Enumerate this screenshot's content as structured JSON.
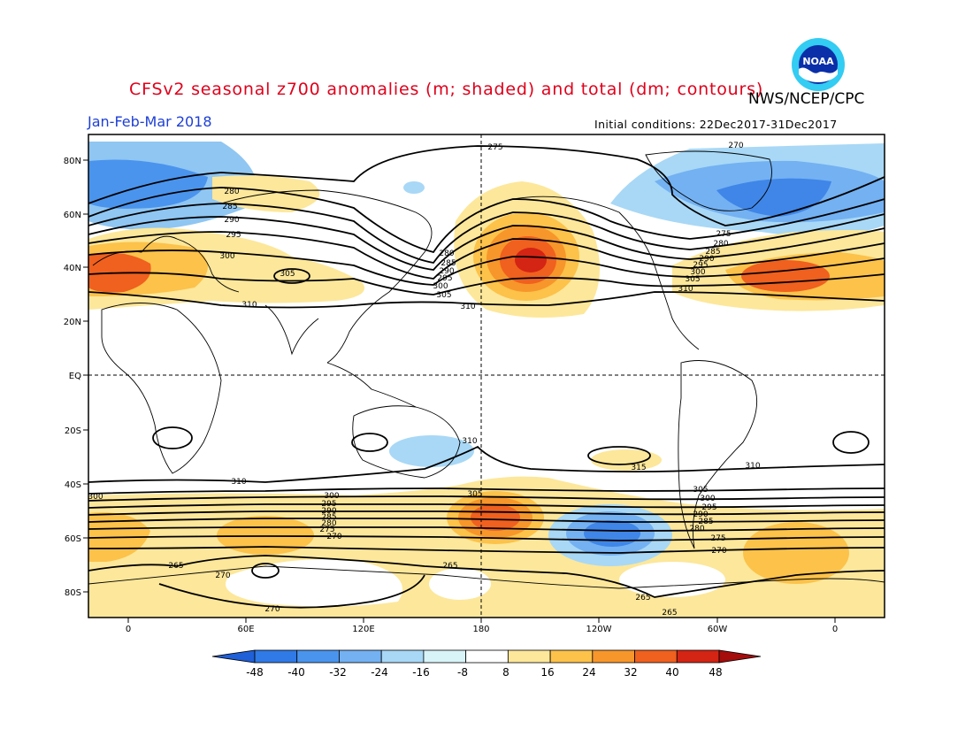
{
  "title": "CFSv2 seasonal z700 anomalies (m; shaded) and total (dm; contours)",
  "organization": "NWS/NCEP/CPC",
  "logo_text": "NOAA",
  "logo_icon": "noaa-logo-icon",
  "period": "Jan-Feb-Mar 2018",
  "initial_conditions": {
    "label": "Initial conditions:",
    "value": "22Dec2017-31Dec2017"
  },
  "lat_labels": [
    "80N",
    "60N",
    "40N",
    "20N",
    "EQ",
    "20S",
    "40S",
    "60S",
    "80S"
  ],
  "lon_labels": [
    "0",
    "60E",
    "120E",
    "180",
    "120W",
    "60W",
    "0"
  ],
  "contour_labels": [
    "275",
    "270",
    "280",
    "285",
    "290",
    "295",
    "300",
    "305",
    "310",
    "280",
    "285",
    "290",
    "295",
    "300",
    "305",
    "310",
    "275",
    "280",
    "285",
    "290",
    "295",
    "300",
    "305",
    "310",
    "310",
    "310",
    "315",
    "310",
    "305",
    "300",
    "295",
    "290",
    "285",
    "280",
    "275",
    "270",
    "305",
    "300",
    "295",
    "290",
    "285",
    "280",
    "275",
    "270",
    "265",
    "270",
    "270",
    "265",
    "265",
    "265",
    "300"
  ],
  "colorbar": {
    "ticks": [
      "-48",
      "-40",
      "-32",
      "-24",
      "-16",
      "-8",
      "8",
      "16",
      "24",
      "32",
      "40",
      "48"
    ],
    "colors": [
      "#1f5fd8",
      "#2f7ae6",
      "#4a94ee",
      "#73b1f2",
      "#a8d8f6",
      "#d8f4f8",
      "#ffffff",
      "#fde79a",
      "#fcc24a",
      "#f7962a",
      "#f0601e",
      "#d42414",
      "#a50c0c"
    ]
  }
}
